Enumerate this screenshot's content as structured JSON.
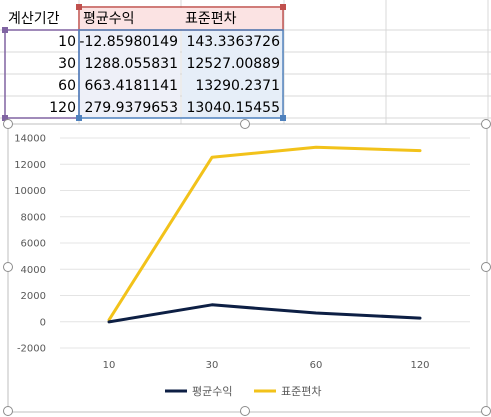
{
  "table": {
    "headers": [
      "계산기간",
      "평균수익",
      "표준편차"
    ],
    "rows": [
      [
        "10",
        "-12.85980149",
        "143.3363726"
      ],
      [
        "30",
        "1288.055831",
        "12527.00889"
      ],
      [
        "60",
        "663.4181141",
        "13290.2371"
      ],
      [
        "120",
        "279.9379653",
        "13040.15455"
      ]
    ]
  },
  "chart_data": {
    "type": "line",
    "categories": [
      "10",
      "30",
      "60",
      "120"
    ],
    "series": [
      {
        "name": "평균수익",
        "values": [
          -12.85980149,
          1288.055831,
          663.4181141,
          279.9379653
        ],
        "color": "#0d1f44"
      },
      {
        "name": "표준편차",
        "values": [
          143.3363726,
          12527.00889,
          13290.2371,
          13040.15455
        ],
        "color": "#f2c21a"
      }
    ],
    "ylim": [
      -2000,
      14000
    ],
    "yticks": [
      "-2000",
      "0",
      "2000",
      "4000",
      "6000",
      "8000",
      "10000",
      "12000",
      "14000"
    ],
    "grid": true,
    "legend": "bottom"
  }
}
